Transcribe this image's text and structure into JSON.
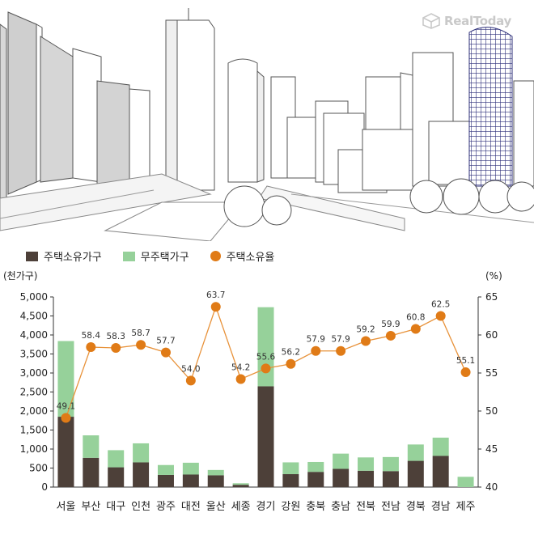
{
  "logo": {
    "text": "RealToday",
    "icon": "realtoday-cube-logo-icon"
  },
  "legend": {
    "owner": "주택소유가구",
    "nonowner": "무주택가구",
    "rate": "주택소유율"
  },
  "colors": {
    "owner": "#4d4039",
    "nonowner": "#96d19a",
    "rate_line": "#e8923a",
    "rate_dot": "#e07b17"
  },
  "chart_data": {
    "type": "bar",
    "stacked": true,
    "categories": [
      "서울",
      "부산",
      "대구",
      "인천",
      "광주",
      "대전",
      "울산",
      "세종",
      "경기",
      "강원",
      "충북",
      "충남",
      "전북",
      "전남",
      "경북",
      "경남",
      "제주"
    ],
    "series": [
      {
        "name": "주택소유가구",
        "axis": "left",
        "values": [
          1850,
          770,
          520,
          650,
          320,
          330,
          310,
          60,
          2650,
          340,
          400,
          480,
          430,
          420,
          690,
          820,
          0
        ]
      },
      {
        "name": "무주택가구",
        "axis": "left",
        "values": [
          1990,
          590,
          450,
          500,
          260,
          310,
          140,
          40,
          2080,
          310,
          260,
          400,
          350,
          370,
          430,
          480,
          270
        ]
      },
      {
        "name": "주택소유율",
        "axis": "right",
        "type": "line",
        "values": [
          49.1,
          58.4,
          58.3,
          58.7,
          57.7,
          54.0,
          63.7,
          54.2,
          55.6,
          56.2,
          57.9,
          57.9,
          59.2,
          59.9,
          60.8,
          62.5,
          55.1
        ],
        "labels": [
          "49.1",
          "58.4",
          "58.3",
          "58.7",
          "57.7",
          "54.0",
          "63.7",
          "54.2",
          "55.6",
          "56.2",
          "57.9",
          "57.9",
          "59.2",
          "59.9",
          "60.8",
          "62.5",
          "55.1"
        ]
      }
    ],
    "left_axis": {
      "unit_label": "(천가구)",
      "range": [
        0,
        5000
      ],
      "ticks": [
        0,
        500,
        1000,
        1500,
        2000,
        2500,
        3000,
        3500,
        4000,
        4500,
        5000
      ],
      "tick_labels": [
        "0",
        "500",
        "1,000",
        "1,500",
        "2,000",
        "2,500",
        "3,000",
        "3,500",
        "4,000",
        "4,500",
        "5,000"
      ]
    },
    "right_axis": {
      "unit_label": "(%)",
      "range": [
        40,
        65
      ],
      "ticks": [
        40,
        45,
        50,
        55,
        60,
        65
      ],
      "tick_labels": [
        "40",
        "45",
        "50",
        "55",
        "60",
        "65"
      ]
    },
    "grid": false,
    "legend_position": "top-left"
  }
}
